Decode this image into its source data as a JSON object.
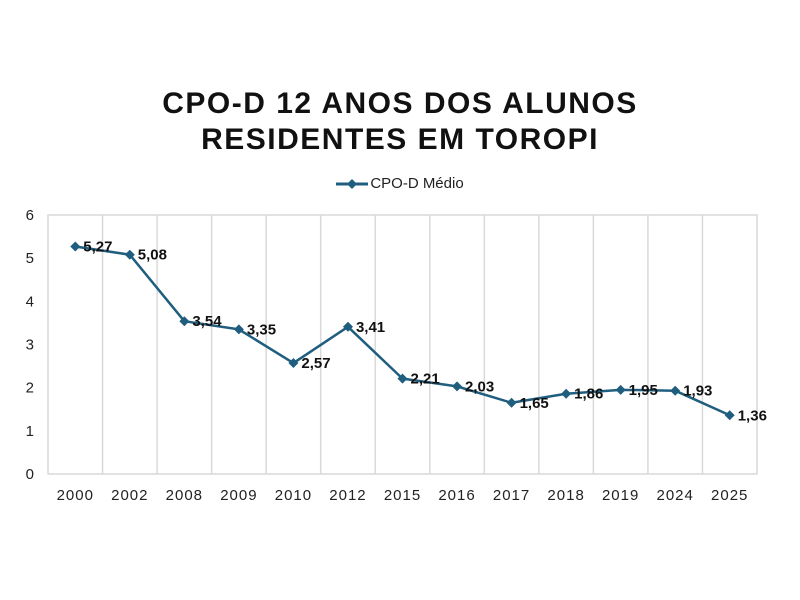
{
  "chart_data": {
    "type": "line",
    "title_lines": [
      "CPO-D 12 ANOS DOS ALUNOS",
      "RESIDENTES EM TOROPI"
    ],
    "title": "CPO-D 12 ANOS DOS ALUNOS RESIDENTES EM TOROPI",
    "xlabel": "",
    "ylabel": "",
    "categories": [
      "2000",
      "2002",
      "2008",
      "2009",
      "2010",
      "2012",
      "2015",
      "2016",
      "2017",
      "2018",
      "2019",
      "2024",
      "2025"
    ],
    "series": [
      {
        "name": "CPO-D Médio",
        "color": "#1f5e7e",
        "marker": "diamond",
        "values": [
          5.27,
          5.08,
          3.54,
          3.35,
          2.57,
          3.41,
          2.21,
          2.03,
          1.65,
          1.86,
          1.95,
          1.93,
          1.36
        ],
        "data_labels": [
          "5,27",
          "5,08",
          "3,54",
          "3,35",
          "2,57",
          "3,41",
          "2,21",
          "2,03",
          "1,65",
          "1,86",
          "1,95",
          "1,93",
          "1,36"
        ]
      }
    ],
    "ylim": [
      0,
      6
    ],
    "yticks": [
      "0",
      "1",
      "2",
      "3",
      "4",
      "5",
      "6"
    ],
    "grid": "vertical",
    "legend_position": "top"
  }
}
